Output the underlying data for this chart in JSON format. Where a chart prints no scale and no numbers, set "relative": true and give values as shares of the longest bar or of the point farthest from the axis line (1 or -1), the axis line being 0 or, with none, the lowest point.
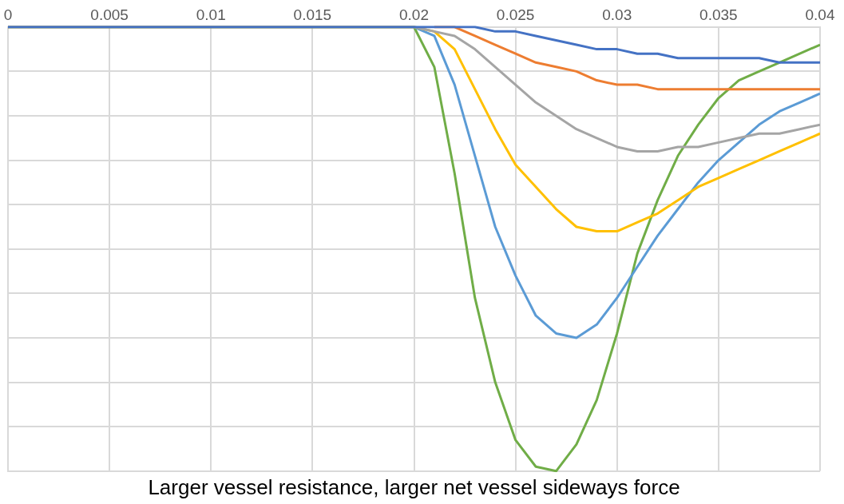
{
  "chart_data": {
    "type": "line",
    "title": "Larger vessel resistance, larger net vessel sideways force",
    "relative": true,
    "grid": true,
    "legend": false,
    "marker": "none",
    "line_style": "solid",
    "tick_labels": "x",
    "xlim": [
      0,
      0.04
    ],
    "xticks": [
      0,
      0.005,
      0.01,
      0.015,
      0.02,
      0.025,
      0.03,
      0.035,
      0.04
    ],
    "x": [
      0,
      0.02,
      0.021,
      0.022,
      0.023,
      0.024,
      0.025,
      0.026,
      0.027,
      0.028,
      0.029,
      0.03,
      0.031,
      0.032,
      0.033,
      0.034,
      0.035,
      0.036,
      0.037,
      0.038,
      0.039,
      0.04
    ],
    "series": [
      {
        "color": "#4472c4",
        "values": [
          0,
          0,
          0,
          0,
          0,
          -0.01,
          -0.01,
          -0.02,
          -0.03,
          -0.04,
          -0.05,
          -0.05,
          -0.06,
          -0.06,
          -0.07,
          -0.07,
          -0.07,
          -0.07,
          -0.07,
          -0.08,
          -0.08,
          -0.08
        ]
      },
      {
        "color": "#ed7d31",
        "values": [
          null,
          null,
          0,
          0,
          -0.02,
          -0.04,
          -0.06,
          -0.08,
          -0.09,
          -0.1,
          -0.12,
          -0.13,
          -0.13,
          -0.14,
          -0.14,
          -0.14,
          -0.14,
          -0.14,
          -0.14,
          -0.14,
          -0.14,
          -0.14
        ]
      },
      {
        "color": "#a5a5a5",
        "values": [
          0,
          0,
          -0.01,
          -0.02,
          -0.05,
          -0.09,
          -0.13,
          -0.17,
          -0.2,
          -0.23,
          -0.25,
          -0.27,
          -0.28,
          -0.28,
          -0.27,
          -0.27,
          -0.26,
          -0.25,
          -0.24,
          -0.24,
          -0.23,
          -0.22
        ]
      },
      {
        "color": "#ffc000",
        "values": [
          0,
          0,
          -0.01,
          -0.05,
          -0.14,
          -0.23,
          -0.31,
          -0.36,
          -0.41,
          -0.45,
          -0.46,
          -0.46,
          -0.44,
          -0.42,
          -0.39,
          -0.36,
          -0.34,
          -0.32,
          -0.3,
          -0.28,
          -0.26,
          -0.24
        ]
      },
      {
        "color": "#5b9bd5",
        "values": [
          0,
          0,
          -0.02,
          -0.13,
          -0.29,
          -0.45,
          -0.56,
          -0.65,
          -0.69,
          -0.7,
          -0.67,
          -0.61,
          -0.54,
          -0.47,
          -0.41,
          -0.35,
          -0.3,
          -0.26,
          -0.22,
          -0.19,
          -0.17,
          -0.15
        ]
      },
      {
        "color": "#70ad47",
        "values": [
          0,
          0,
          -0.09,
          -0.33,
          -0.61,
          -0.8,
          -0.93,
          -0.99,
          -1,
          -0.94,
          -0.84,
          -0.69,
          -0.51,
          -0.39,
          -0.29,
          -0.22,
          -0.16,
          -0.12,
          -0.1,
          -0.08,
          -0.06,
          -0.04
        ]
      }
    ]
  }
}
